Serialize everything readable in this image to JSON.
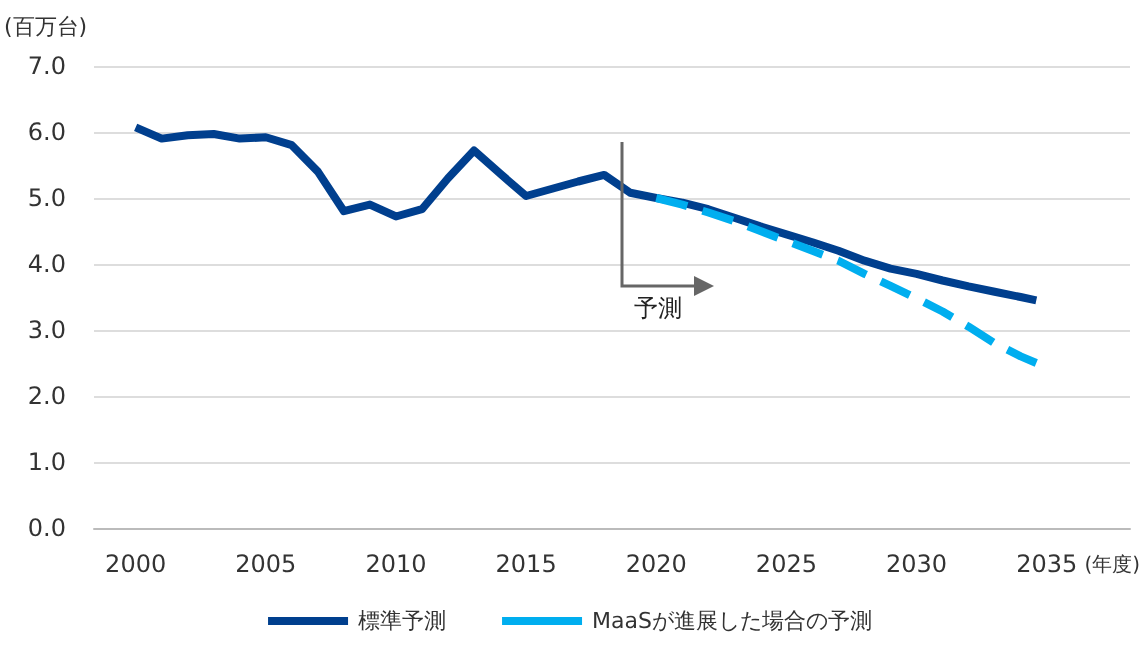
{
  "chart_data": {
    "type": "line",
    "ylabel": "(百万台)",
    "xlabel": "(年度)",
    "xlim": [
      1998.4,
      2038.2
    ],
    "xticks": [
      2000,
      2005,
      2010,
      2015,
      2020,
      2025,
      2030,
      2035
    ],
    "ylim": [
      0,
      7
    ],
    "yticks": [
      {
        "value": 0,
        "label": "0.0"
      },
      {
        "value": 1,
        "label": "1.0"
      },
      {
        "value": 2,
        "label": "2.0"
      },
      {
        "value": 3,
        "label": "3.0"
      },
      {
        "value": 4,
        "label": "4.0"
      },
      {
        "value": 5,
        "label": "5.0"
      },
      {
        "value": 6,
        "label": "6.0"
      },
      {
        "value": 7,
        "label": "7.0"
      }
    ],
    "grid": "y",
    "legend": "bottom",
    "marker": "none",
    "series": [
      {
        "name": "標準予測",
        "color": "#003f8e",
        "line_style": "solid",
        "x": [
          2000,
          2001,
          2002,
          2003,
          2004,
          2005,
          2006,
          2007,
          2008,
          2009,
          2010,
          2011,
          2012,
          2013,
          2014,
          2015,
          2016,
          2017,
          2018,
          2019,
          2020,
          2021,
          2022,
          2023,
          2024,
          2025,
          2026,
          2027,
          2028,
          2029,
          2030,
          2031,
          2032,
          2033,
          2034,
          2034.6
        ],
        "values": [
          6.07,
          5.9,
          5.95,
          5.97,
          5.9,
          5.92,
          5.8,
          5.4,
          4.8,
          4.9,
          4.72,
          4.83,
          5.3,
          5.72,
          5.37,
          5.03,
          5.14,
          5.25,
          5.35,
          5.08,
          5.0,
          4.93,
          4.83,
          4.7,
          4.57,
          4.45,
          4.33,
          4.2,
          4.05,
          3.93,
          3.85,
          3.75,
          3.66,
          3.58,
          3.5,
          3.45
        ]
      },
      {
        "name": "MaaSが進展した場合の予測",
        "color": "#00aeef",
        "line_style": "dashed",
        "x": [
          2020,
          2021,
          2022,
          2023,
          2024,
          2025,
          2026,
          2027,
          2028,
          2029,
          2030,
          2031,
          2032,
          2033,
          2034,
          2034.6
        ],
        "values": [
          5.0,
          4.9,
          4.78,
          4.65,
          4.5,
          4.35,
          4.2,
          4.05,
          3.85,
          3.67,
          3.48,
          3.28,
          3.05,
          2.8,
          2.6,
          2.5
        ]
      }
    ],
    "annotations": [
      "予測"
    ]
  }
}
